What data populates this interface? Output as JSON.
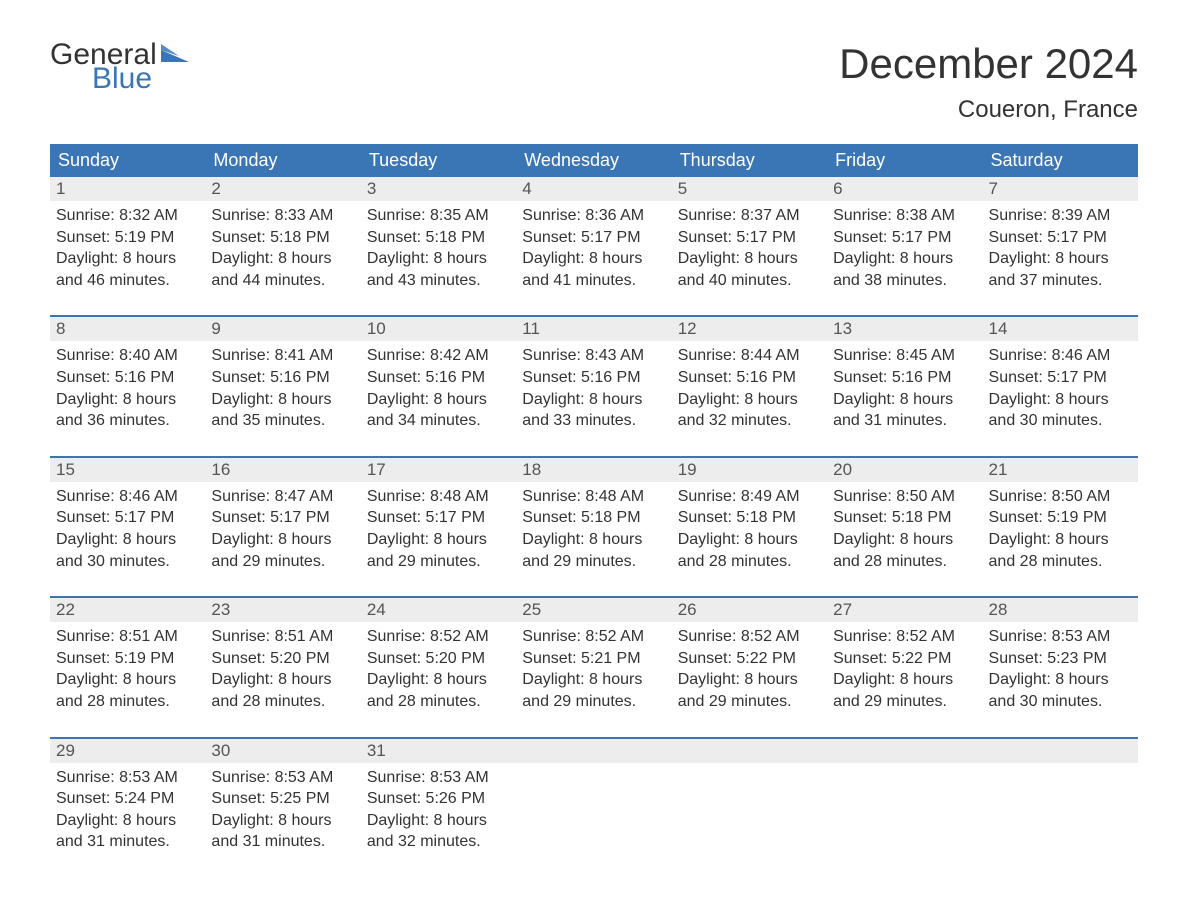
{
  "logo": {
    "text_general": "General",
    "text_blue": "Blue",
    "flag_color": "#3a75b5"
  },
  "header": {
    "month_title": "December 2024",
    "location": "Coueron, France"
  },
  "colors": {
    "header_bg": "#3a75b5",
    "header_text": "#ffffff",
    "daynum_bg": "#ededed",
    "daynum_border": "#3a75b5",
    "body_text": "#333333",
    "daynum_text": "#555555",
    "page_bg": "#ffffff"
  },
  "day_headers": [
    "Sunday",
    "Monday",
    "Tuesday",
    "Wednesday",
    "Thursday",
    "Friday",
    "Saturday"
  ],
  "weeks": [
    [
      {
        "day": "1",
        "sunrise": "Sunrise: 8:32 AM",
        "sunset": "Sunset: 5:19 PM",
        "daylight1": "Daylight: 8 hours",
        "daylight2": "and 46 minutes."
      },
      {
        "day": "2",
        "sunrise": "Sunrise: 8:33 AM",
        "sunset": "Sunset: 5:18 PM",
        "daylight1": "Daylight: 8 hours",
        "daylight2": "and 44 minutes."
      },
      {
        "day": "3",
        "sunrise": "Sunrise: 8:35 AM",
        "sunset": "Sunset: 5:18 PM",
        "daylight1": "Daylight: 8 hours",
        "daylight2": "and 43 minutes."
      },
      {
        "day": "4",
        "sunrise": "Sunrise: 8:36 AM",
        "sunset": "Sunset: 5:17 PM",
        "daylight1": "Daylight: 8 hours",
        "daylight2": "and 41 minutes."
      },
      {
        "day": "5",
        "sunrise": "Sunrise: 8:37 AM",
        "sunset": "Sunset: 5:17 PM",
        "daylight1": "Daylight: 8 hours",
        "daylight2": "and 40 minutes."
      },
      {
        "day": "6",
        "sunrise": "Sunrise: 8:38 AM",
        "sunset": "Sunset: 5:17 PM",
        "daylight1": "Daylight: 8 hours",
        "daylight2": "and 38 minutes."
      },
      {
        "day": "7",
        "sunrise": "Sunrise: 8:39 AM",
        "sunset": "Sunset: 5:17 PM",
        "daylight1": "Daylight: 8 hours",
        "daylight2": "and 37 minutes."
      }
    ],
    [
      {
        "day": "8",
        "sunrise": "Sunrise: 8:40 AM",
        "sunset": "Sunset: 5:16 PM",
        "daylight1": "Daylight: 8 hours",
        "daylight2": "and 36 minutes."
      },
      {
        "day": "9",
        "sunrise": "Sunrise: 8:41 AM",
        "sunset": "Sunset: 5:16 PM",
        "daylight1": "Daylight: 8 hours",
        "daylight2": "and 35 minutes."
      },
      {
        "day": "10",
        "sunrise": "Sunrise: 8:42 AM",
        "sunset": "Sunset: 5:16 PM",
        "daylight1": "Daylight: 8 hours",
        "daylight2": "and 34 minutes."
      },
      {
        "day": "11",
        "sunrise": "Sunrise: 8:43 AM",
        "sunset": "Sunset: 5:16 PM",
        "daylight1": "Daylight: 8 hours",
        "daylight2": "and 33 minutes."
      },
      {
        "day": "12",
        "sunrise": "Sunrise: 8:44 AM",
        "sunset": "Sunset: 5:16 PM",
        "daylight1": "Daylight: 8 hours",
        "daylight2": "and 32 minutes."
      },
      {
        "day": "13",
        "sunrise": "Sunrise: 8:45 AM",
        "sunset": "Sunset: 5:16 PM",
        "daylight1": "Daylight: 8 hours",
        "daylight2": "and 31 minutes."
      },
      {
        "day": "14",
        "sunrise": "Sunrise: 8:46 AM",
        "sunset": "Sunset: 5:17 PM",
        "daylight1": "Daylight: 8 hours",
        "daylight2": "and 30 minutes."
      }
    ],
    [
      {
        "day": "15",
        "sunrise": "Sunrise: 8:46 AM",
        "sunset": "Sunset: 5:17 PM",
        "daylight1": "Daylight: 8 hours",
        "daylight2": "and 30 minutes."
      },
      {
        "day": "16",
        "sunrise": "Sunrise: 8:47 AM",
        "sunset": "Sunset: 5:17 PM",
        "daylight1": "Daylight: 8 hours",
        "daylight2": "and 29 minutes."
      },
      {
        "day": "17",
        "sunrise": "Sunrise: 8:48 AM",
        "sunset": "Sunset: 5:17 PM",
        "daylight1": "Daylight: 8 hours",
        "daylight2": "and 29 minutes."
      },
      {
        "day": "18",
        "sunrise": "Sunrise: 8:48 AM",
        "sunset": "Sunset: 5:18 PM",
        "daylight1": "Daylight: 8 hours",
        "daylight2": "and 29 minutes."
      },
      {
        "day": "19",
        "sunrise": "Sunrise: 8:49 AM",
        "sunset": "Sunset: 5:18 PM",
        "daylight1": "Daylight: 8 hours",
        "daylight2": "and 28 minutes."
      },
      {
        "day": "20",
        "sunrise": "Sunrise: 8:50 AM",
        "sunset": "Sunset: 5:18 PM",
        "daylight1": "Daylight: 8 hours",
        "daylight2": "and 28 minutes."
      },
      {
        "day": "21",
        "sunrise": "Sunrise: 8:50 AM",
        "sunset": "Sunset: 5:19 PM",
        "daylight1": "Daylight: 8 hours",
        "daylight2": "and 28 minutes."
      }
    ],
    [
      {
        "day": "22",
        "sunrise": "Sunrise: 8:51 AM",
        "sunset": "Sunset: 5:19 PM",
        "daylight1": "Daylight: 8 hours",
        "daylight2": "and 28 minutes."
      },
      {
        "day": "23",
        "sunrise": "Sunrise: 8:51 AM",
        "sunset": "Sunset: 5:20 PM",
        "daylight1": "Daylight: 8 hours",
        "daylight2": "and 28 minutes."
      },
      {
        "day": "24",
        "sunrise": "Sunrise: 8:52 AM",
        "sunset": "Sunset: 5:20 PM",
        "daylight1": "Daylight: 8 hours",
        "daylight2": "and 28 minutes."
      },
      {
        "day": "25",
        "sunrise": "Sunrise: 8:52 AM",
        "sunset": "Sunset: 5:21 PM",
        "daylight1": "Daylight: 8 hours",
        "daylight2": "and 29 minutes."
      },
      {
        "day": "26",
        "sunrise": "Sunrise: 8:52 AM",
        "sunset": "Sunset: 5:22 PM",
        "daylight1": "Daylight: 8 hours",
        "daylight2": "and 29 minutes."
      },
      {
        "day": "27",
        "sunrise": "Sunrise: 8:52 AM",
        "sunset": "Sunset: 5:22 PM",
        "daylight1": "Daylight: 8 hours",
        "daylight2": "and 29 minutes."
      },
      {
        "day": "28",
        "sunrise": "Sunrise: 8:53 AM",
        "sunset": "Sunset: 5:23 PM",
        "daylight1": "Daylight: 8 hours",
        "daylight2": "and 30 minutes."
      }
    ],
    [
      {
        "day": "29",
        "sunrise": "Sunrise: 8:53 AM",
        "sunset": "Sunset: 5:24 PM",
        "daylight1": "Daylight: 8 hours",
        "daylight2": "and 31 minutes."
      },
      {
        "day": "30",
        "sunrise": "Sunrise: 8:53 AM",
        "sunset": "Sunset: 5:25 PM",
        "daylight1": "Daylight: 8 hours",
        "daylight2": "and 31 minutes."
      },
      {
        "day": "31",
        "sunrise": "Sunrise: 8:53 AM",
        "sunset": "Sunset: 5:26 PM",
        "daylight1": "Daylight: 8 hours",
        "daylight2": "and 32 minutes."
      },
      {
        "empty": true
      },
      {
        "empty": true
      },
      {
        "empty": true
      },
      {
        "empty": true
      }
    ]
  ]
}
